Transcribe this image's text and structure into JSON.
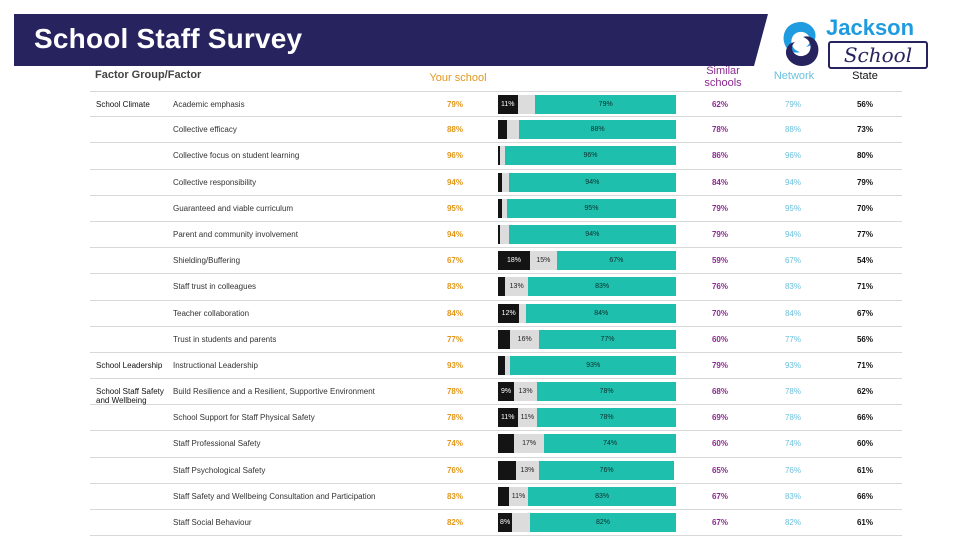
{
  "header": {
    "title": "School Staff Survey"
  },
  "logo": {
    "word1": "Jackson",
    "word2": "School",
    "icon": "brain-swirl-logo-icon"
  },
  "table_headers": {
    "factor": "Factor Group/Factor",
    "your_school": "Your school",
    "similar_schools": "Similar schools",
    "network": "Network",
    "state": "State"
  },
  "colors": {
    "title_bar": "#26235f",
    "your_school": "#e2971c",
    "similar": "#8a2a8f",
    "network": "#6ac1dd",
    "state": "#111111",
    "negative": "#141414",
    "neutral": "#dcdcdc",
    "positive": "#1fbfad"
  },
  "chart_data": {
    "type": "bar",
    "stacked": true,
    "series": [
      {
        "name": "negative"
      },
      {
        "name": "neutral"
      },
      {
        "name": "positive"
      }
    ],
    "rows": [
      {
        "group": "School Climate",
        "factor": "Academic emphasis",
        "your_school": "79%",
        "bar": [
          11,
          10,
          79
        ],
        "bar_labels": [
          "11%",
          "",
          "79%"
        ],
        "similar": "62%",
        "network": "79%",
        "state": "56%"
      },
      {
        "group": "",
        "factor": "Collective efficacy",
        "your_school": "88%",
        "bar": [
          5,
          7,
          88
        ],
        "bar_labels": [
          "",
          "",
          "88%"
        ],
        "similar": "78%",
        "network": "88%",
        "state": "73%"
      },
      {
        "group": "",
        "factor": "Collective focus on student learning",
        "your_school": "96%",
        "bar": [
          1,
          3,
          96
        ],
        "bar_labels": [
          "",
          "",
          "96%"
        ],
        "similar": "86%",
        "network": "96%",
        "state": "80%"
      },
      {
        "group": "",
        "factor": "Collective responsibility",
        "your_school": "94%",
        "bar": [
          2,
          4,
          94
        ],
        "bar_labels": [
          "",
          "",
          "94%"
        ],
        "similar": "84%",
        "network": "94%",
        "state": "79%"
      },
      {
        "group": "",
        "factor": "Guaranteed and viable curriculum",
        "your_school": "95%",
        "bar": [
          2,
          3,
          95
        ],
        "bar_labels": [
          "",
          "",
          "95%"
        ],
        "similar": "79%",
        "network": "95%",
        "state": "70%"
      },
      {
        "group": "",
        "factor": "Parent and community involvement",
        "your_school": "94%",
        "bar": [
          1,
          5,
          94
        ],
        "bar_labels": [
          "",
          "",
          "94%"
        ],
        "similar": "79%",
        "network": "94%",
        "state": "77%"
      },
      {
        "group": "",
        "factor": "Shielding/Buffering",
        "your_school": "67%",
        "bar": [
          18,
          15,
          67
        ],
        "bar_labels": [
          "18%",
          "15%",
          "67%"
        ],
        "similar": "59%",
        "network": "67%",
        "state": "54%"
      },
      {
        "group": "",
        "factor": "Staff trust in colleagues",
        "your_school": "83%",
        "bar": [
          4,
          13,
          83
        ],
        "bar_labels": [
          "",
          "13%",
          "83%"
        ],
        "similar": "76%",
        "network": "83%",
        "state": "71%"
      },
      {
        "group": "",
        "factor": "Teacher collaboration",
        "your_school": "84%",
        "bar": [
          12,
          4,
          84
        ],
        "bar_labels": [
          "12%",
          "",
          "84%"
        ],
        "similar": "70%",
        "network": "84%",
        "state": "67%"
      },
      {
        "group": "",
        "factor": "Trust in students and parents",
        "your_school": "77%",
        "bar": [
          7,
          16,
          77
        ],
        "bar_labels": [
          "",
          "16%",
          "77%"
        ],
        "similar": "60%",
        "network": "77%",
        "state": "56%"
      },
      {
        "group": "School Leadership",
        "factor": "Instructional Leadership",
        "your_school": "93%",
        "bar": [
          4,
          3,
          93
        ],
        "bar_labels": [
          "",
          "",
          "93%"
        ],
        "similar": "79%",
        "network": "93%",
        "state": "71%"
      },
      {
        "group": "School Staff Safety and Wellbeing",
        "factor": "Build Resilience and a Resilient, Supportive Environment",
        "your_school": "78%",
        "bar": [
          9,
          13,
          78
        ],
        "bar_labels": [
          "9%",
          "13%",
          "78%"
        ],
        "similar": "68%",
        "network": "78%",
        "state": "62%"
      },
      {
        "group": "",
        "factor": "School Support for Staff Physical Safety",
        "your_school": "78%",
        "bar": [
          11,
          11,
          78
        ],
        "bar_labels": [
          "11%",
          "11%",
          "78%"
        ],
        "similar": "69%",
        "network": "78%",
        "state": "66%"
      },
      {
        "group": "",
        "factor": "Staff Professional Safety",
        "your_school": "74%",
        "bar": [
          9,
          17,
          74
        ],
        "bar_labels": [
          "",
          "17%",
          "74%"
        ],
        "similar": "60%",
        "network": "74%",
        "state": "60%"
      },
      {
        "group": "",
        "factor": "Staff Psychological Safety",
        "your_school": "76%",
        "bar": [
          10,
          13,
          76
        ],
        "bar_labels": [
          "",
          "13%",
          "76%"
        ],
        "similar": "65%",
        "network": "76%",
        "state": "61%"
      },
      {
        "group": "",
        "factor": "Staff Safety and Wellbeing Consultation and Participation",
        "your_school": "83%",
        "bar": [
          6,
          11,
          83
        ],
        "bar_labels": [
          "",
          "11%",
          "83%"
        ],
        "similar": "67%",
        "network": "83%",
        "state": "66%"
      },
      {
        "group": "",
        "factor": "Staff Social Behaviour",
        "your_school": "82%",
        "bar": [
          8,
          10,
          82
        ],
        "bar_labels": [
          "8%",
          "",
          "82%"
        ],
        "similar": "67%",
        "network": "82%",
        "state": "61%"
      }
    ]
  }
}
